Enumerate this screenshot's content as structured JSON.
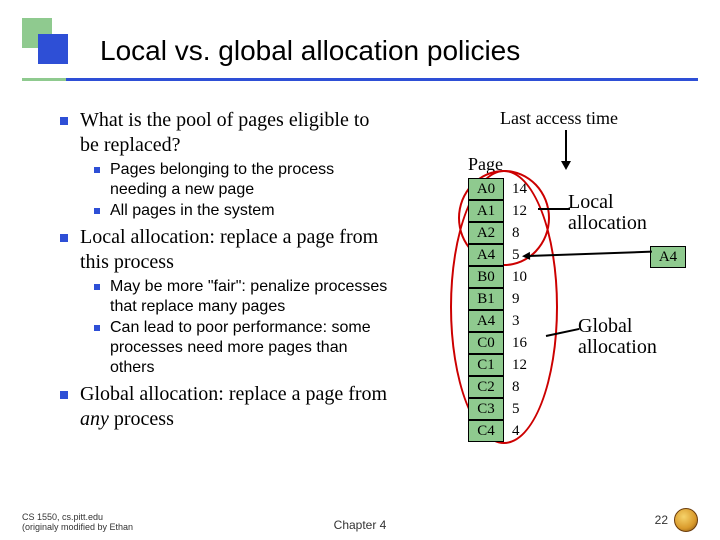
{
  "colors": {
    "accent_green": "#8fca8f",
    "accent_blue": "#2e4fd6",
    "ellipse_red": "#c00",
    "background": "#ffffff",
    "text": "#000000"
  },
  "title": "Local vs. global allocation policies",
  "bullets": [
    {
      "level": 1,
      "text": "What is the pool of pages eligible to be replaced?"
    },
    {
      "level": 2,
      "text": "Pages belonging to the process needing a new page"
    },
    {
      "level": 2,
      "text": "All pages in the system"
    },
    {
      "level": 1,
      "text": "Local allocation: replace a page from this process"
    },
    {
      "level": 2,
      "text": "May be more \"fair\": penalize processes that replace many pages"
    },
    {
      "level": 2,
      "text": "Can lead to poor performance: some processes need more pages than others"
    },
    {
      "level": 1,
      "text_html": "Global allocation: replace a page from <span class=\"em\">any</span> process"
    }
  ],
  "diagram": {
    "last_access_label": "Last access time",
    "page_header": "Page",
    "table": [
      {
        "page": "A0",
        "time": "14"
      },
      {
        "page": "A1",
        "time": "12"
      },
      {
        "page": "A2",
        "time": "8"
      },
      {
        "page": "A4",
        "time": "5"
      },
      {
        "page": "B0",
        "time": "10"
      },
      {
        "page": "B1",
        "time": "9"
      },
      {
        "page": "A4",
        "time": "3"
      },
      {
        "page": "C0",
        "time": "16"
      },
      {
        "page": "C1",
        "time": "12"
      },
      {
        "page": "C2",
        "time": "8"
      },
      {
        "page": "C3",
        "time": "5"
      },
      {
        "page": "C4",
        "time": "4"
      }
    ],
    "local_label_l1": "Local",
    "local_label_l2": "allocation",
    "global_label_l1": "Global",
    "global_label_l2": "allocation",
    "a4_chip": "A4"
  },
  "footer": {
    "left_l1": "CS 1550, cs.pitt.edu",
    "left_l2": "(originaly modified by Ethan",
    "center": "Chapter 4",
    "page_num": "22"
  }
}
